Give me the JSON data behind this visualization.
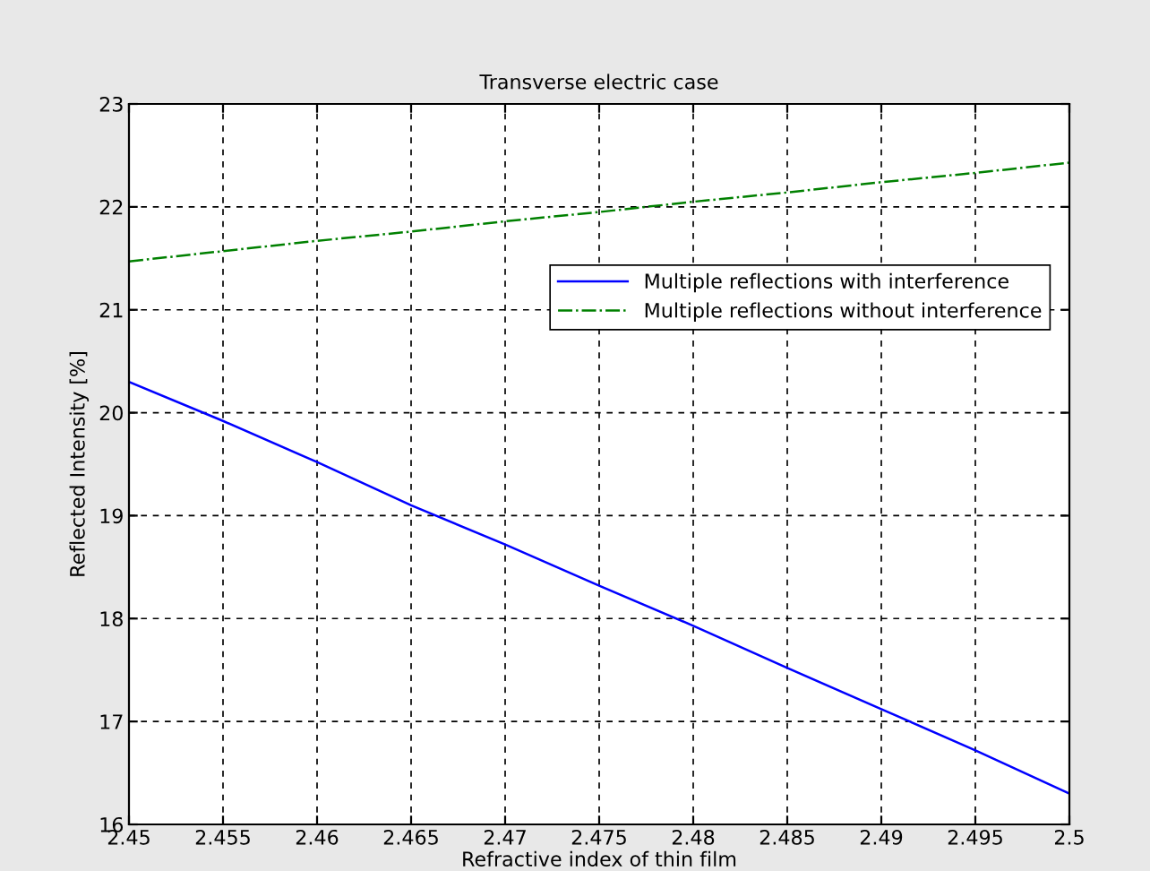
{
  "chart_data": {
    "type": "line",
    "title": "Transverse electric case",
    "xlabel": "Refractive index of thin film",
    "ylabel": "Reflected Intensity [%]",
    "x": [
      2.45,
      2.455,
      2.46,
      2.465,
      2.47,
      2.475,
      2.48,
      2.485,
      2.49,
      2.495,
      2.5
    ],
    "series": [
      {
        "name": "Multiple reflections with interference",
        "color": "#0000ff",
        "line_style": "solid",
        "values": [
          20.3,
          19.92,
          19.52,
          19.1,
          18.72,
          18.32,
          17.93,
          17.52,
          17.12,
          16.72,
          16.3
        ]
      },
      {
        "name": "Multiple reflections without interference",
        "color": "#008000",
        "line_style": "dashdot",
        "values": [
          21.47,
          21.57,
          21.67,
          21.76,
          21.86,
          21.95,
          22.05,
          22.14,
          22.24,
          22.33,
          22.43
        ]
      }
    ],
    "xlim": [
      2.45,
      2.5
    ],
    "xticks": [
      2.45,
      2.455,
      2.46,
      2.465,
      2.47,
      2.475,
      2.48,
      2.485,
      2.49,
      2.495,
      2.5
    ],
    "ylim": [
      16,
      23
    ],
    "yticks": [
      16,
      17,
      18,
      19,
      20,
      21,
      22,
      23
    ],
    "grid": true,
    "legend": "top right",
    "marker": "none"
  }
}
